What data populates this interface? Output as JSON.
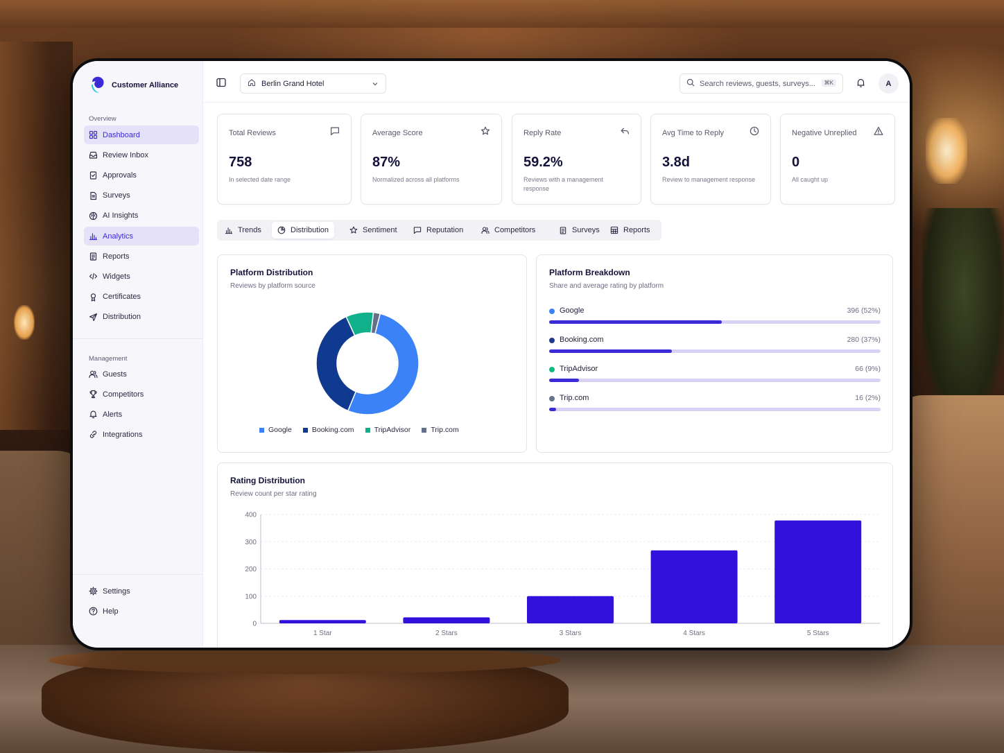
{
  "app": {
    "brand_name": "Customer Alliance"
  },
  "sidebar": {
    "overview_title": "Overview",
    "overview_items": [
      {
        "label": "Dashboard",
        "icon": "grid-icon",
        "active": true
      },
      {
        "label": "Review Inbox",
        "icon": "inbox-icon"
      },
      {
        "label": "Approvals",
        "icon": "clipboard-check-icon"
      },
      {
        "label": "Surveys",
        "icon": "file-text-icon"
      },
      {
        "label": "AI Insights",
        "icon": "brain-icon"
      },
      {
        "label": "Analytics",
        "icon": "bar-chart-icon",
        "active": true
      },
      {
        "label": "Reports",
        "icon": "clipboard-icon"
      },
      {
        "label": "Widgets",
        "icon": "code-icon"
      },
      {
        "label": "Certificates",
        "icon": "award-icon"
      },
      {
        "label": "Distribution",
        "icon": "send-icon"
      }
    ],
    "management_title": "Management",
    "management_items": [
      {
        "label": "Guests",
        "icon": "users-icon"
      },
      {
        "label": "Competitors",
        "icon": "trophy-icon"
      },
      {
        "label": "Alerts",
        "icon": "bell-icon"
      },
      {
        "label": "Integrations",
        "icon": "link-icon"
      }
    ],
    "footer_items": [
      {
        "label": "Settings",
        "icon": "gear-icon"
      },
      {
        "label": "Help",
        "icon": "help-circle-icon"
      }
    ]
  },
  "topbar": {
    "hotel_selected": "Berlin Grand Hotel",
    "search_placeholder": "Search reviews, guests, surveys...",
    "search_shortcut": "⌘K",
    "avatar_initial": "A"
  },
  "kpis": [
    {
      "label": "Total Reviews",
      "value": "758",
      "sub": "In selected date range",
      "icon": "message-square-icon"
    },
    {
      "label": "Average Score",
      "value": "87%",
      "sub": "Normalized across all platforms",
      "icon": "star-icon"
    },
    {
      "label": "Reply Rate",
      "value": "59.2%",
      "sub": "Reviews with a management response",
      "icon": "reply-icon"
    },
    {
      "label": "Avg Time to Reply",
      "value": "3.8d",
      "sub": "Review to management response",
      "icon": "clock-icon"
    },
    {
      "label": "Negative Unreplied",
      "value": "0",
      "sub": "All caught up",
      "icon": "alert-triangle-icon"
    }
  ],
  "tabs": [
    {
      "label": "Trends",
      "icon": "bar-chart-icon"
    },
    {
      "label": "Distribution",
      "icon": "pie-chart-icon",
      "active": true
    },
    {
      "label": "Sentiment",
      "icon": "star-icon"
    },
    {
      "label": "Reputation",
      "icon": "message-square-icon"
    },
    {
      "label": "Competitors",
      "icon": "users-icon"
    },
    {
      "label": "Surveys",
      "icon": "clipboard-icon"
    },
    {
      "label": "Reports",
      "icon": "table-icon"
    }
  ],
  "platform_distribution": {
    "title": "Platform Distribution",
    "subtitle": "Reviews by platform source"
  },
  "platform_breakdown": {
    "title": "Platform Breakdown",
    "subtitle": "Share and average rating by platform",
    "rows": [
      {
        "name": "Google",
        "value": "396 (52%)",
        "share": 0.52,
        "color": "#3b82f6"
      },
      {
        "name": "Booking.com",
        "value": "280 (37%)",
        "share": 0.37,
        "color": "#1e3a8a"
      },
      {
        "name": "TripAdvisor",
        "value": "66 (9%)",
        "share": 0.09,
        "color": "#10b981"
      },
      {
        "name": "Trip.com",
        "value": "16 (2%)",
        "share": 0.02,
        "color": "#64748b"
      }
    ]
  },
  "rating_distribution": {
    "title": "Rating Distribution",
    "subtitle": "Review count per star rating"
  },
  "chart_data": [
    {
      "type": "pie",
      "categories": [
        "Google",
        "Booking.com",
        "TripAdvisor",
        "Trip.com"
      ],
      "values": [
        396,
        280,
        66,
        16
      ],
      "colors": [
        "#3b82f6",
        "#0f3a8f",
        "#10b08a",
        "#64708a"
      ],
      "donut": true,
      "legend": "bottom"
    },
    {
      "type": "bar",
      "categories": [
        "1 Star",
        "2 Stars",
        "3 Stars",
        "4 Stars",
        "5 Stars"
      ],
      "values": [
        12,
        22,
        100,
        268,
        378
      ],
      "ylim": [
        0,
        400
      ],
      "yticks": [
        0,
        100,
        200,
        300,
        400
      ],
      "grid": true,
      "color": "#3311dd"
    }
  ]
}
